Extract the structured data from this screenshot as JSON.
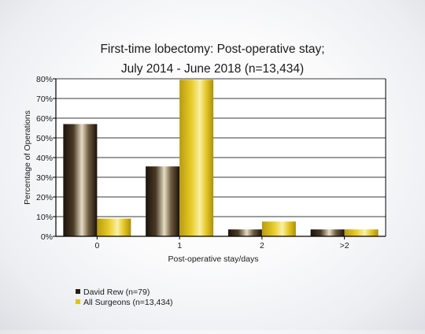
{
  "chart_data": {
    "type": "bar",
    "title": "First-time lobectomy: Post-operative stay;",
    "subtitle": "July 2014 - June 2018 (n=13,434)",
    "xlabel": "Post-operative stay/days",
    "ylabel": "Percentage of Operations",
    "categories": [
      "0",
      "1",
      "2",
      ">2"
    ],
    "ylim": [
      0,
      80
    ],
    "yticks": [
      "0%",
      "10%",
      "20%",
      "30%",
      "40%",
      "50%",
      "60%",
      "70%",
      "80%"
    ],
    "grid": true,
    "legend_position": "bottom-left",
    "series": [
      {
        "name": "David Rew (n=79)",
        "values": [
          57,
          35.5,
          3.5,
          3.5
        ],
        "color": "#2a1d12"
      },
      {
        "name": "All Surgeons (n=13,434)",
        "values": [
          9,
          79.5,
          7.5,
          3.5
        ],
        "color": "#e0c21c"
      }
    ]
  }
}
